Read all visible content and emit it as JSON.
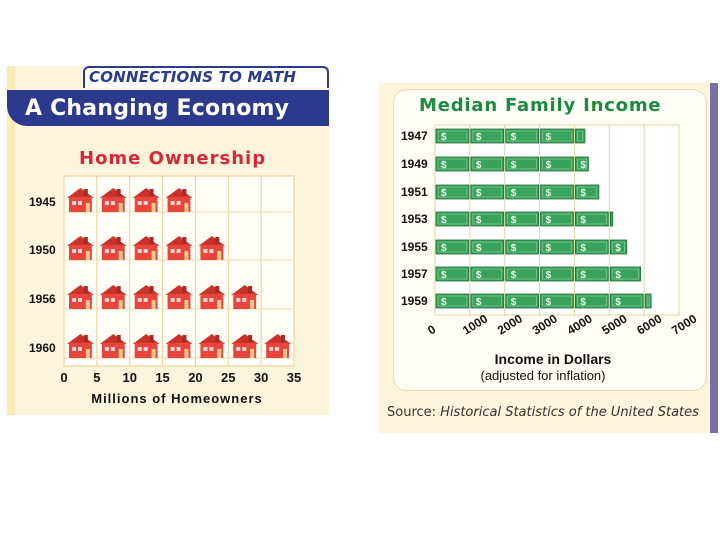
{
  "left_panel": {
    "header": "CONNECTIONS TO MATH",
    "title": "A Changing Economy"
  },
  "right_panel": {
    "source_label": "Source:",
    "source_value": "Historical Statistics of the United States"
  },
  "colors": {
    "navy": "#2b3a8c",
    "house_red": "#e8463c",
    "title_red": "#d7283a",
    "title_green": "#1b8a43",
    "bill_green": "#3aa35b",
    "cream": "#fdf4dc"
  },
  "icons": {
    "house": "house-icon",
    "dollar_bill": "dollar-bill-icon"
  },
  "chart_data": [
    {
      "type": "bar",
      "title": "Home Ownership",
      "xlabel": "Millions of Homeowners",
      "categories": [
        "1945",
        "1950",
        "1956",
        "1960"
      ],
      "values": [
        20,
        25,
        30,
        35
      ],
      "unit_per_symbol": 5,
      "xlim": [
        0,
        35
      ],
      "x_ticks": [
        "0",
        "5",
        "10",
        "15",
        "20",
        "25",
        "30",
        "35"
      ],
      "orientation": "horizontal",
      "grid": true
    },
    {
      "type": "bar",
      "title": "Median Family Income",
      "xlabel": "Income in Dollars",
      "xlabel_note": "(adjusted for inflation)",
      "categories": [
        "1947",
        "1949",
        "1951",
        "1953",
        "1955",
        "1957",
        "1959"
      ],
      "values": [
        4300,
        4400,
        4700,
        5100,
        5500,
        5900,
        6200
      ],
      "unit_per_symbol": 1000,
      "xlim": [
        0,
        7000
      ],
      "x_ticks": [
        "0",
        "1000",
        "2000",
        "3000",
        "4000",
        "5000",
        "6000",
        "7000"
      ],
      "orientation": "horizontal",
      "grid": true
    }
  ]
}
